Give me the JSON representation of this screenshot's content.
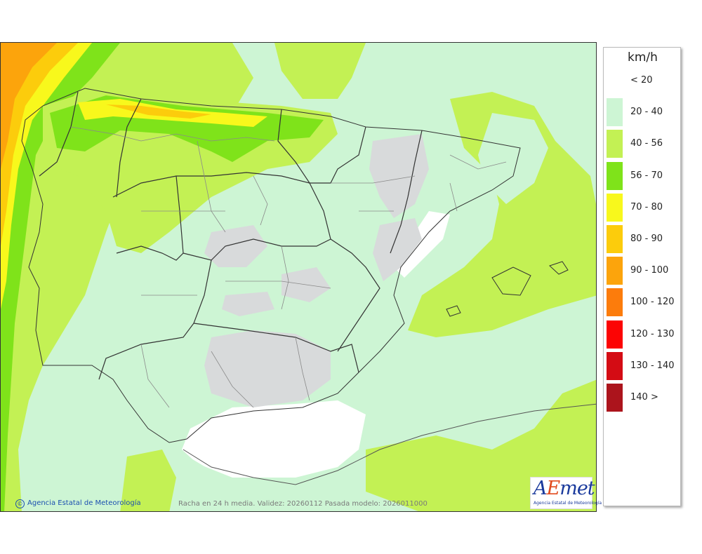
{
  "legend": {
    "unit": "km/h",
    "items": [
      {
        "label": "< 20",
        "color": "#ffffff"
      },
      {
        "label": "20 - 40",
        "color": "#cdf5d4"
      },
      {
        "label": "40 - 56",
        "color": "#c3f154"
      },
      {
        "label": "56 - 70",
        "color": "#7fe31a"
      },
      {
        "label": "70 - 80",
        "color": "#f8f81c"
      },
      {
        "label": "80 - 90",
        "color": "#fccc0c"
      },
      {
        "label": "90 - 100",
        "color": "#fca40c"
      },
      {
        "label": "100 - 120",
        "color": "#fc7c0c"
      },
      {
        "label": "120 - 130",
        "color": "#fc0404"
      },
      {
        "label": "130 - 140",
        "color": "#d40c14"
      },
      {
        "label": "140 >",
        "color": "#ac141c"
      }
    ]
  },
  "credit": "Agencia Estatal de Meteorología",
  "caption": "Racha en 24 h media. Validez: 20260112 Pasada modelo: 2026011000",
  "logo": {
    "a": "A",
    "e": "E",
    "met": "met",
    "subtitle": "Agencia Estatal de Meteorología"
  }
}
